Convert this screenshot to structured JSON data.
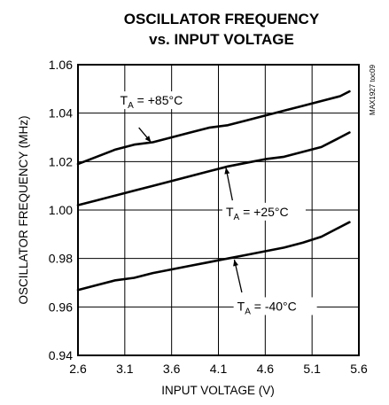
{
  "chart_data": {
    "type": "line",
    "title_lines": [
      "OSCILLATOR FREQUENCY",
      "vs. INPUT VOLTAGE"
    ],
    "xlabel": "INPUT VOLTAGE (V)",
    "ylabel": "OSCILLATOR FREQUENCY (MHz)",
    "xlim": [
      2.6,
      5.6
    ],
    "ylim": [
      0.94,
      1.06
    ],
    "x_ticks": [
      "2.6",
      "3.1",
      "3.6",
      "4.1",
      "4.6",
      "5.1",
      "5.6"
    ],
    "y_ticks": [
      "0.94",
      "0.96",
      "0.98",
      "1.00",
      "1.02",
      "1.04",
      "1.06"
    ],
    "grid": true,
    "watermark": "MAX1927 toc09",
    "series": [
      {
        "name": "TA = +85°C",
        "label_main": "T",
        "label_sub": "A",
        "label_rest": " = +85°C",
        "x": [
          2.6,
          2.8,
          3.0,
          3.2,
          3.4,
          3.6,
          3.8,
          4.0,
          4.2,
          4.4,
          4.6,
          4.8,
          5.0,
          5.2,
          5.4,
          5.5
        ],
        "y": [
          1.019,
          1.022,
          1.025,
          1.027,
          1.028,
          1.03,
          1.032,
          1.034,
          1.035,
          1.037,
          1.039,
          1.041,
          1.043,
          1.045,
          1.047,
          1.049
        ]
      },
      {
        "name": "TA = +25°C",
        "label_main": "T",
        "label_sub": "A",
        "label_rest": " = +25°C",
        "x": [
          2.6,
          2.8,
          3.0,
          3.2,
          3.4,
          3.6,
          3.8,
          4.0,
          4.2,
          4.4,
          4.6,
          4.8,
          5.0,
          5.2,
          5.4,
          5.5
        ],
        "y": [
          1.002,
          1.004,
          1.006,
          1.008,
          1.01,
          1.012,
          1.014,
          1.016,
          1.018,
          1.0195,
          1.021,
          1.022,
          1.024,
          1.026,
          1.03,
          1.032
        ]
      },
      {
        "name": "TA = -40°C",
        "label_main": "T",
        "label_sub": "A",
        "label_rest": " = -40°C",
        "x": [
          2.6,
          2.8,
          3.0,
          3.2,
          3.4,
          3.6,
          3.8,
          4.0,
          4.2,
          4.4,
          4.6,
          4.8,
          5.0,
          5.2,
          5.4,
          5.5
        ],
        "y": [
          0.967,
          0.969,
          0.971,
          0.972,
          0.974,
          0.9755,
          0.977,
          0.9785,
          0.98,
          0.9815,
          0.983,
          0.9845,
          0.9865,
          0.989,
          0.993,
          0.995
        ]
      }
    ],
    "annotations": [
      {
        "series": 0,
        "text_x": 3.05,
        "text_y": 1.0435,
        "arrow_from": [
          3.25,
          1.034
        ],
        "arrow_to": [
          3.38,
          1.028
        ]
      },
      {
        "series": 1,
        "text_x": 4.18,
        "text_y": 0.9975,
        "arrow_from": [
          4.25,
          1.004
        ],
        "arrow_to": [
          4.18,
          1.0175
        ]
      },
      {
        "series": 2,
        "text_x": 4.3,
        "text_y": 0.9585,
        "arrow_from": [
          4.35,
          0.966
        ],
        "arrow_to": [
          4.27,
          0.9795
        ]
      }
    ]
  }
}
